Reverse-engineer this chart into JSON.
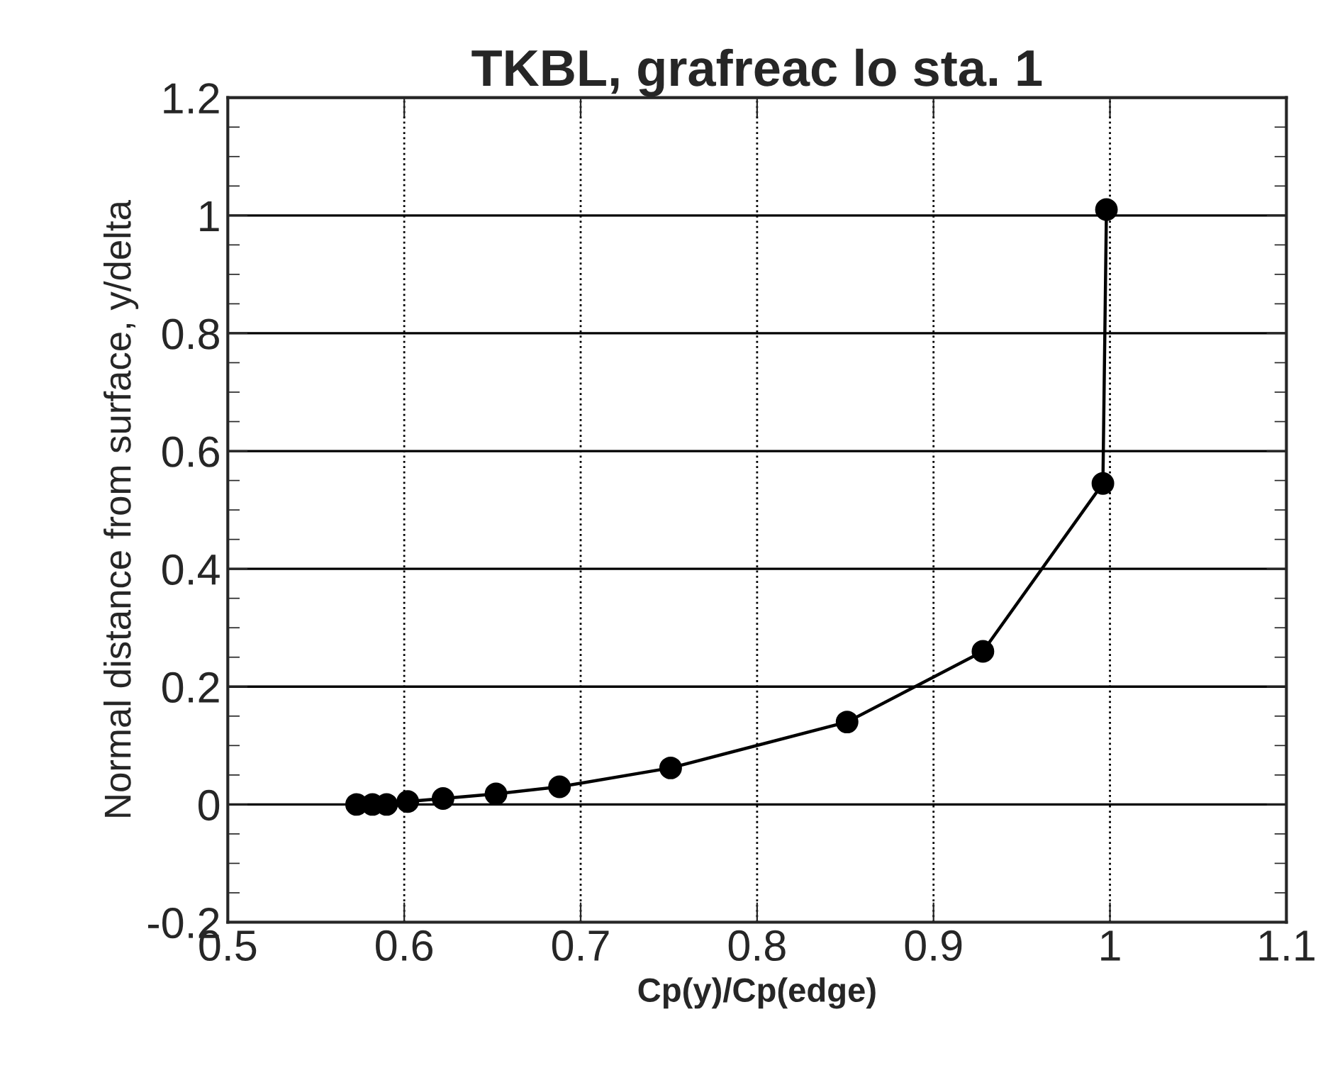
{
  "chart_data": {
    "type": "line",
    "title": "TKBL, grafreac lo sta. 1",
    "xlabel": "Cp(y)/Cp(edge)",
    "ylabel": "Normal distance from surface, y/delta",
    "x": [
      0.573,
      0.582,
      0.59,
      0.602,
      0.622,
      0.652,
      0.688,
      0.751,
      0.851,
      0.928,
      0.996,
      0.998
    ],
    "series": [
      {
        "color": "#000000",
        "values": [
          0,
          0,
          0,
          0.005,
          0.01,
          0.018,
          0.03,
          0.062,
          0.14,
          0.26,
          0.545,
          1.01
        ]
      }
    ],
    "xlim": [
      0.5,
      1.1
    ],
    "xticks": [
      0.5,
      0.6,
      0.7,
      0.8,
      0.9,
      1,
      1.1
    ],
    "ylim": [
      -0.2,
      1.2
    ],
    "yticks": [
      -0.2,
      0,
      0.2,
      0.4,
      0.6,
      0.8,
      1,
      1.2
    ],
    "grid": true,
    "marker": "circle",
    "line_style": "solid",
    "legend": false
  }
}
